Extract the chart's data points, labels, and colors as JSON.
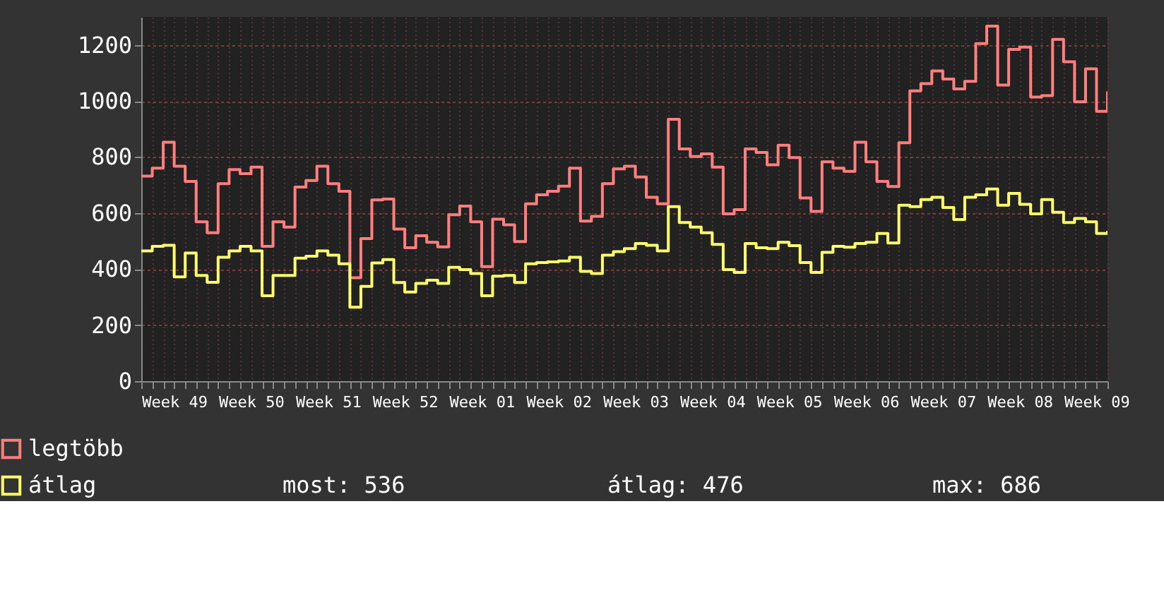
{
  "chart_data": {
    "type": "step",
    "categories": [
      null,
      null,
      null,
      "Week 49",
      null,
      null,
      null,
      null,
      null,
      null,
      "Week 50",
      null,
      null,
      null,
      null,
      null,
      null,
      "Week 51",
      null,
      null,
      null,
      null,
      null,
      null,
      "Week 52",
      null,
      null,
      null,
      null,
      null,
      null,
      "Week 01",
      null,
      null,
      null,
      null,
      null,
      null,
      "Week 02",
      null,
      null,
      null,
      null,
      null,
      null,
      "Week 03",
      null,
      null,
      null,
      null,
      null,
      null,
      "Week 04",
      null,
      null,
      null,
      null,
      null,
      null,
      "Week 05",
      null,
      null,
      null,
      null,
      null,
      null,
      "Week 06",
      null,
      null,
      null,
      null,
      null,
      null,
      "Week 07",
      null,
      null,
      null,
      null,
      null,
      null,
      "Week 08",
      null,
      null,
      null,
      null,
      null,
      null,
      "Week 09",
      null
    ],
    "series": [
      {
        "name": "legtöbb",
        "color": "#ff7f7f",
        "values": [
          732,
          760,
          853,
          767,
          713,
          569,
          530,
          705,
          755,
          741,
          764,
          481,
          569,
          550,
          693,
          716,
          767,
          705,
          678,
          369,
          509,
          647,
          650,
          543,
          476,
          519,
          496,
          479,
          594,
          625,
          569,
          409,
          578,
          558,
          498,
          633,
          665,
          678,
          696,
          760,
          571,
          588,
          705,
          758,
          767,
          729,
          656,
          633,
          935,
          829,
          802,
          811,
          764,
          597,
          612,
          829,
          816,
          772,
          842,
          798,
          654,
          606,
          783,
          760,
          749,
          853,
          783,
          713,
          695,
          851,
          1036,
          1062,
          1107,
          1078,
          1043,
          1070,
          1205,
          1267,
          1057,
          1184,
          1192,
          1014,
          1019,
          1220,
          1140,
          997,
          1115,
          963,
          1034
        ]
      },
      {
        "name": "átlag",
        "color": "#ffff6b",
        "values": [
          465,
          481,
          485,
          372,
          457,
          377,
          353,
          442,
          465,
          481,
          465,
          305,
          377,
          377,
          439,
          446,
          465,
          450,
          419,
          264,
          338,
          422,
          434,
          352,
          318,
          349,
          360,
          349,
          406,
          398,
          384,
          305,
          375,
          377,
          352,
          419,
          423,
          426,
          429,
          442,
          392,
          384,
          450,
          462,
          473,
          491,
          485,
          465,
          623,
          566,
          550,
          530,
          488,
          398,
          388,
          491,
          476,
          473,
          496,
          484,
          423,
          388,
          460,
          481,
          478,
          491,
          496,
          527,
          493,
          628,
          623,
          648,
          656,
          620,
          577,
          656,
          665,
          686,
          628,
          670,
          631,
          597,
          648,
          603,
          566,
          581,
          569,
          527,
          536
        ]
      }
    ],
    "ylim": [
      0,
      1300
    ],
    "yticks": [
      0,
      200,
      400,
      600,
      800,
      1000,
      1200
    ],
    "grid": true,
    "legend": "bottom left",
    "line_style": "solid",
    "marker": "none",
    "annotations": [
      "most: 536",
      "átlag: 476",
      "max: 686"
    ]
  }
}
